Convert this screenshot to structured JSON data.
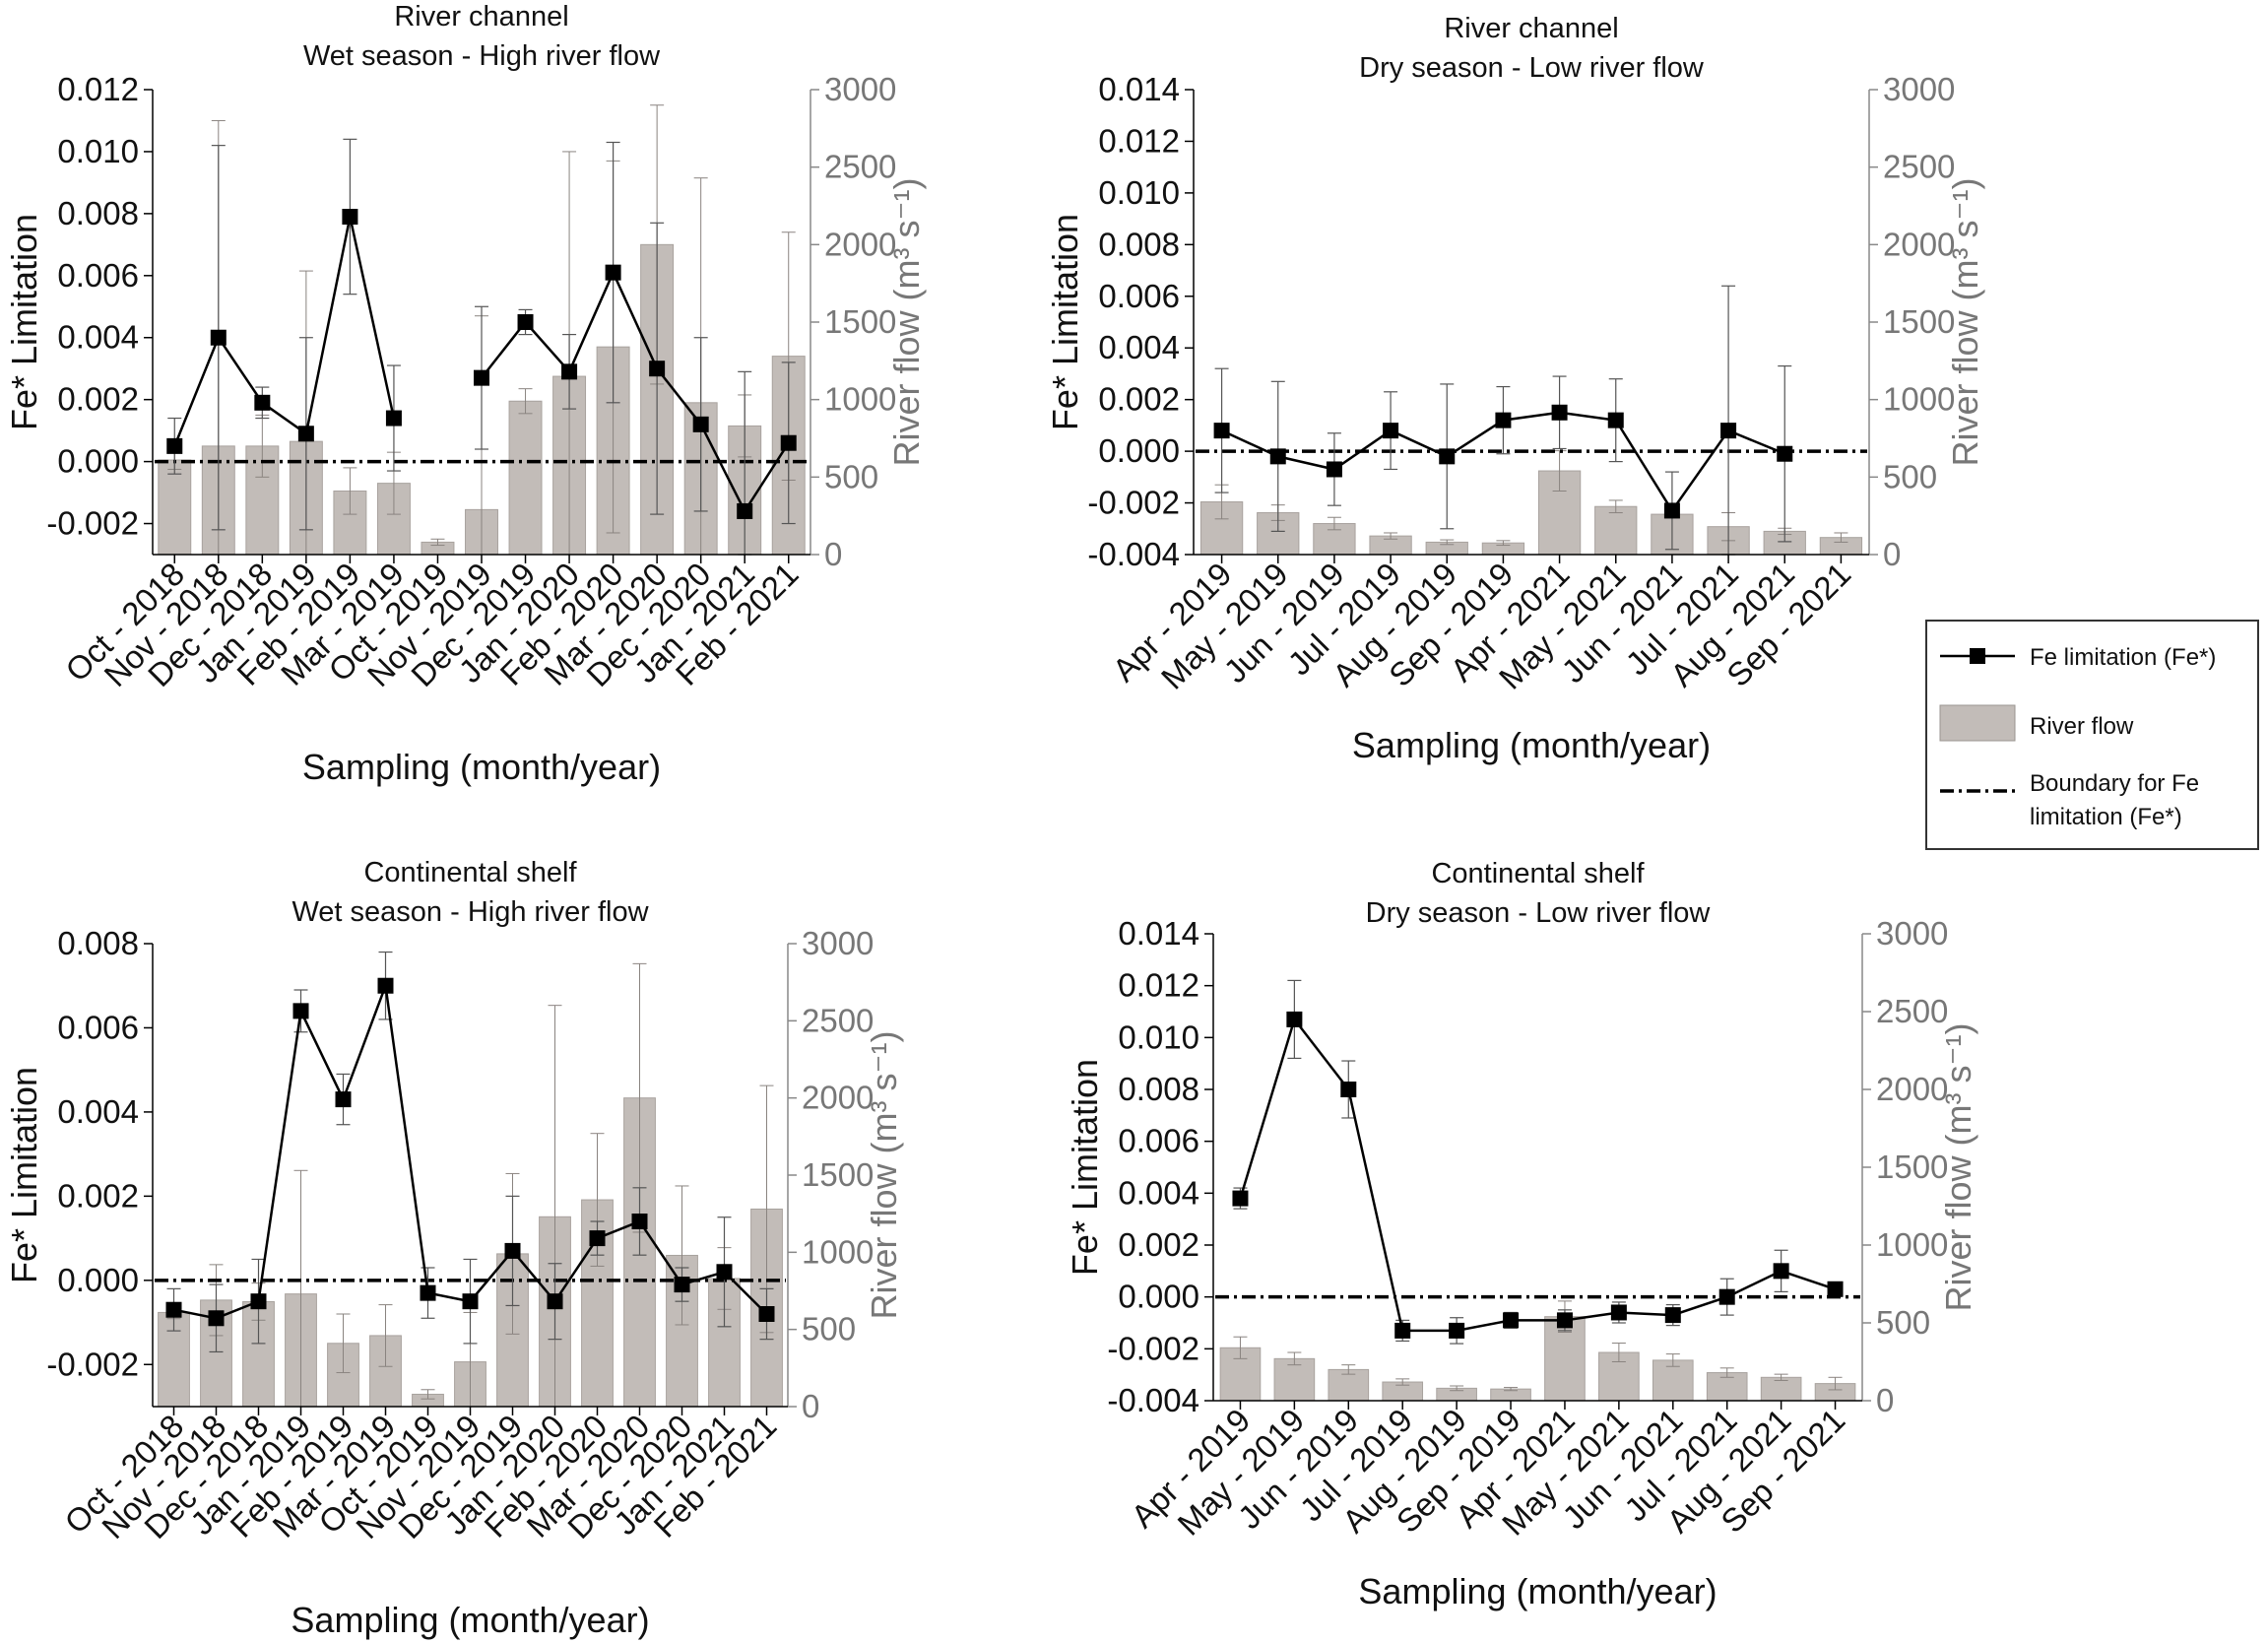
{
  "legend": {
    "items": [
      {
        "label": "Fe limitation (Fe*)"
      },
      {
        "label": "River flow"
      },
      {
        "label_line1": "Boundary for Fe",
        "label_line2": "limitation (Fe*)"
      }
    ]
  },
  "colors": {
    "bar": "#c2bcb8",
    "line": "#000000",
    "right_axis": "#777777"
  },
  "chart_data": [
    {
      "type": "bar",
      "title_line1": "River channel",
      "title_line2": "Wet season - High river flow",
      "ylabel_left": "Fe* Limitation",
      "ylabel_right": "River flow (m³ s⁻¹)",
      "xlabel": "Sampling (month/year)",
      "ylim_left": [
        -0.003,
        0.012
      ],
      "ylim_right": [
        0,
        3000
      ],
      "yticks_left": [
        "-0.002",
        "0.000",
        "0.002",
        "0.004",
        "0.006",
        "0.008",
        "0.010",
        "0.012"
      ],
      "yticks_right": [
        "0",
        "500",
        "1000",
        "1500",
        "2000",
        "2500",
        "3000"
      ],
      "categories": [
        "Oct - 2018",
        "Nov - 2018",
        "Dec - 2018",
        "Jan - 2019",
        "Feb - 2019",
        "Mar - 2019",
        "Oct - 2019",
        "Nov - 2019",
        "Dec - 2019",
        "Jan - 2020",
        "Feb - 2020",
        "Mar - 2020",
        "Dec - 2020",
        "Jan - 2021",
        "Feb - 2021"
      ],
      "river_flow": [
        610,
        700,
        700,
        730,
        410,
        460,
        80,
        290,
        990,
        1150,
        1340,
        2000,
        980,
        830,
        1280
      ],
      "river_flow_err": [
        60,
        2100,
        200,
        1100,
        150,
        200,
        20,
        1250,
        80,
        1450,
        1200,
        900,
        1450,
        200,
        800
      ],
      "fe_limitation": [
        0.0005,
        0.004,
        0.0019,
        0.0009,
        0.0079,
        0.0014,
        null,
        0.0027,
        0.0045,
        0.0029,
        0.0061,
        0.003,
        0.0012,
        -0.0016,
        0.0006
      ],
      "fe_err": [
        0.0009,
        0.0062,
        0.0005,
        0.0031,
        0.0025,
        0.0017,
        null,
        0.0023,
        0.0004,
        0.0012,
        0.0042,
        0.0047,
        0.0028,
        0.0045,
        0.0026
      ],
      "boundary": 0.0
    },
    {
      "type": "bar",
      "title_line1": "River channel",
      "title_line2": "Dry season - Low river flow",
      "ylabel_left": "Fe* Limitation",
      "ylabel_right": "River flow (m³ s⁻¹)",
      "xlabel": "Sampling (month/year)",
      "ylim_left": [
        -0.004,
        0.014
      ],
      "ylim_right": [
        0,
        3000
      ],
      "yticks_left": [
        "-0.004",
        "-0.002",
        "0.000",
        "0.002",
        "0.004",
        "0.006",
        "0.008",
        "0.010",
        "0.012",
        "0.014"
      ],
      "yticks_right": [
        "0",
        "500",
        "1000",
        "1500",
        "2000",
        "2500",
        "3000"
      ],
      "categories": [
        "Apr - 2019",
        "May - 2019",
        "Jun - 2019",
        "Jul - 2019",
        "Aug - 2019",
        "Sep - 2019",
        "Apr - 2021",
        "May - 2021",
        "Jun - 2021",
        "Jul - 2021",
        "Aug - 2021",
        "Sep - 2021"
      ],
      "river_flow": [
        340,
        270,
        200,
        120,
        80,
        75,
        540,
        310,
        260,
        180,
        150,
        110
      ],
      "river_flow_err": [
        110,
        50,
        40,
        20,
        15,
        15,
        130,
        40,
        20,
        90,
        20,
        30
      ],
      "fe_limitation": [
        0.0008,
        -0.0002,
        -0.0007,
        0.0008,
        -0.0002,
        0.0012,
        0.0015,
        0.0012,
        -0.0023,
        0.0008,
        -0.0001,
        null
      ],
      "fe_err": [
        0.0024,
        0.0029,
        0.0014,
        0.0015,
        0.0028,
        0.0013,
        0.0014,
        0.0016,
        0.0015,
        0.0056,
        0.0034,
        null
      ],
      "boundary": 0.0
    },
    {
      "type": "bar",
      "title_line1": "Continental shelf",
      "title_line2": "Wet season - High river flow",
      "ylabel_left": "Fe* Limitation",
      "ylabel_right": "River flow (m³ s⁻¹)",
      "xlabel": "Sampling (month/year)",
      "ylim_left": [
        -0.003,
        0.008
      ],
      "ylim_right": [
        0,
        3000
      ],
      "yticks_left": [
        "-0.002",
        "0.000",
        "0.002",
        "0.004",
        "0.006",
        "0.008"
      ],
      "yticks_right": [
        "0",
        "500",
        "1000",
        "1500",
        "2000",
        "2500",
        "3000"
      ],
      "categories": [
        "Oct - 2018",
        "Nov - 2018",
        "Dec - 2018",
        "Jan - 2019",
        "Feb - 2019",
        "Mar - 2019",
        "Oct - 2019",
        "Nov - 2019",
        "Dec - 2019",
        "Jan - 2020",
        "Feb - 2020",
        "Mar - 2020",
        "Dec - 2020",
        "Jan - 2021",
        "Feb - 2021"
      ],
      "river_flow": [
        610,
        690,
        680,
        730,
        410,
        460,
        80,
        290,
        990,
        1230,
        1340,
        2000,
        980,
        830,
        1280
      ],
      "river_flow_err": [
        40,
        230,
        120,
        800,
        190,
        200,
        30,
        320,
        520,
        1370,
        430,
        870,
        450,
        200,
        800
      ],
      "fe_limitation": [
        -0.0007,
        -0.0009,
        -0.0005,
        0.0064,
        0.0043,
        0.007,
        -0.0003,
        -0.0005,
        0.0007,
        -0.0005,
        0.001,
        0.0014,
        -0.0001,
        0.0002,
        -0.0008
      ],
      "fe_err": [
        0.0005,
        0.0008,
        0.001,
        0.0005,
        0.0006,
        0.0008,
        0.0006,
        0.001,
        0.0013,
        0.0009,
        0.0004,
        0.0008,
        0.0004,
        0.0013,
        0.0006
      ],
      "boundary": 0.0
    },
    {
      "type": "bar",
      "title_line1": "Continental shelf",
      "title_line2": "Dry season - Low river flow",
      "ylabel_left": "Fe* Limitation",
      "ylabel_right": "River flow (m³ s⁻¹)",
      "xlabel": "Sampling (month/year)",
      "ylim_left": [
        -0.004,
        0.014
      ],
      "ylim_right": [
        0,
        3000
      ],
      "yticks_left": [
        "-0.004",
        "-0.002",
        "0.000",
        "0.002",
        "0.004",
        "0.006",
        "0.008",
        "0.010",
        "0.012",
        "0.014"
      ],
      "yticks_right": [
        "0",
        "500",
        "1000",
        "1500",
        "2000",
        "2500",
        "3000"
      ],
      "categories": [
        "Apr - 2019",
        "May - 2019",
        "Jun - 2019",
        "Jul - 2019",
        "Aug - 2019",
        "Sep - 2019",
        "Apr - 2021",
        "May - 2021",
        "Jun - 2021",
        "Jul - 2021",
        "Aug - 2021",
        "Sep - 2021"
      ],
      "river_flow": [
        340,
        270,
        200,
        120,
        80,
        75,
        540,
        310,
        260,
        180,
        150,
        110
      ],
      "river_flow_err": [
        70,
        40,
        30,
        20,
        15,
        10,
        100,
        60,
        40,
        30,
        20,
        40
      ],
      "fe_limitation": [
        0.0038,
        0.0107,
        0.008,
        -0.0013,
        -0.0013,
        -0.0009,
        -0.0009,
        -0.0006,
        -0.0007,
        0.0,
        0.001,
        0.0003
      ],
      "fe_err": [
        0.0004,
        0.0015,
        0.0011,
        0.0004,
        0.0005,
        0.0003,
        0.0004,
        0.0004,
        0.0004,
        0.0007,
        0.0008,
        null
      ],
      "boundary": 0.0
    }
  ]
}
